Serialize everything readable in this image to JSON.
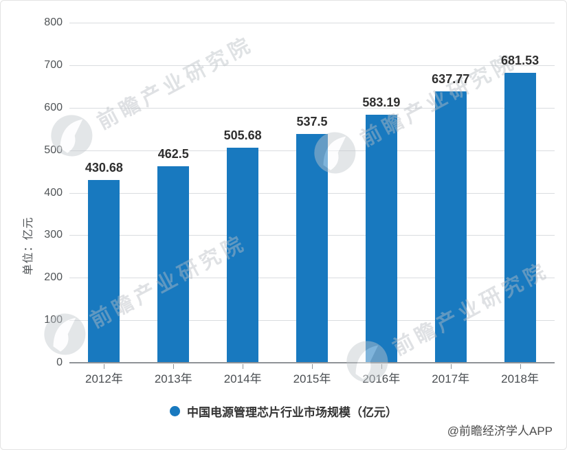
{
  "chart_data": {
    "type": "bar",
    "title": "",
    "categories": [
      "2012年",
      "2013年",
      "2014年",
      "2015年",
      "2016年",
      "2017年",
      "2018年"
    ],
    "values": [
      430.68,
      462.5,
      505.68,
      537.5,
      583.19,
      637.77,
      681.53
    ],
    "value_labels": [
      "430.68",
      "462.5",
      "505.68",
      "537.5",
      "583.19",
      "637.77",
      "681.53"
    ],
    "xlabel": "",
    "ylabel": "单位：亿元",
    "ylim": [
      0,
      800
    ],
    "yticks": [
      0,
      100,
      200,
      300,
      400,
      500,
      600,
      700,
      800
    ],
    "grid": true,
    "legend": [
      "中国电源管理芯片行业市场规模（亿元）"
    ],
    "legend_position": "bottom",
    "bar_color": "#1879BF"
  },
  "watermark": {
    "text": "前瞻产业研究院"
  },
  "attribution": "@前瞻经济学人APP",
  "colors": {
    "bar": "#1879BF",
    "grid": "#D9DCDF",
    "axis_line": "#8E9296",
    "value_label": "#2F2F2F",
    "tick_label": "#4F5356",
    "legend_text": "#333333",
    "watermark": "#B9BEC4",
    "attribution": "#4A4A4A",
    "background": "#FFFFFF"
  }
}
